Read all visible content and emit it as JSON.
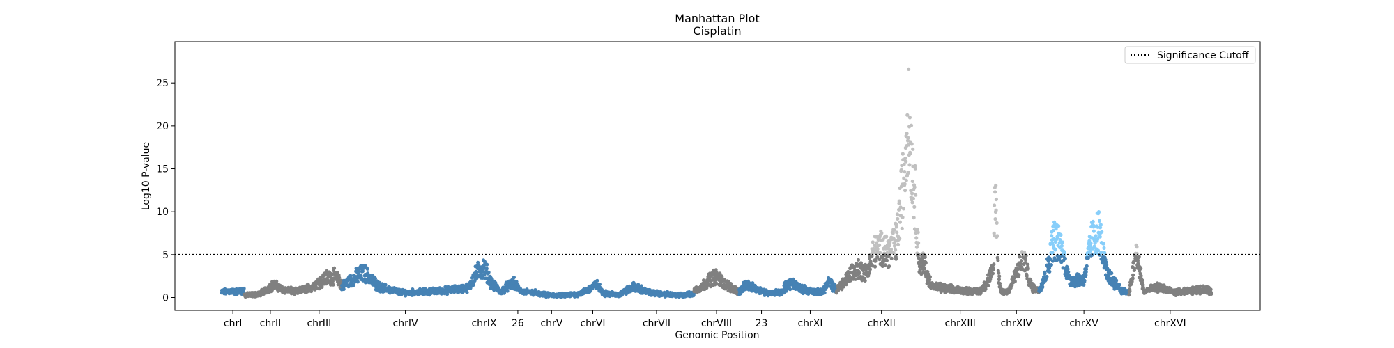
{
  "chart_data": {
    "type": "scatter",
    "title": "Manhattan Plot",
    "subtitle": "Cisplatin",
    "xlabel": "Genomic Position",
    "ylabel": "Log10 P-value",
    "ylim": [
      -1.5,
      29.8
    ],
    "yticks": [
      0,
      5,
      10,
      15,
      20,
      25
    ],
    "grid": false,
    "legend": {
      "placement": "top-right",
      "entries": [
        "Significance Cutoff"
      ]
    },
    "cutoff": 5,
    "colors": {
      "odd_chrom": "#4682b4",
      "even_chrom": "#808080",
      "odd_significant": "#87cefa",
      "even_significant": "#c0c0c0"
    },
    "chromosomes": [
      {
        "label": "chrI",
        "start": 0,
        "end": 3,
        "color": "odd",
        "profile": [
          [
            0,
            0.7
          ],
          [
            1,
            0.9
          ],
          [
            2,
            0.8
          ],
          [
            3,
            1.0
          ]
        ]
      },
      {
        "label": "chrII",
        "start": 3,
        "end": 10,
        "color": "even",
        "profile": [
          [
            3,
            0.3
          ],
          [
            5,
            0.5
          ],
          [
            7,
            1.8
          ],
          [
            8,
            1.2
          ],
          [
            10,
            0.8
          ]
        ]
      },
      {
        "label": "chrIII",
        "start": 10,
        "end": 16,
        "color": "even",
        "profile": [
          [
            10,
            0.8
          ],
          [
            12,
            1.5
          ],
          [
            14,
            2.8
          ],
          [
            15,
            3.0
          ],
          [
            16,
            2.0
          ]
        ]
      },
      {
        "label": "chrIV",
        "start": 16,
        "end": 33,
        "color": "odd",
        "profile": [
          [
            16,
            1.5
          ],
          [
            18,
            3.0
          ],
          [
            19,
            3.5
          ],
          [
            21,
            1.5
          ],
          [
            24,
            0.7
          ],
          [
            27,
            0.8
          ],
          [
            30,
            1.0
          ],
          [
            33,
            1.4
          ]
        ]
      },
      {
        "label": "chrIX",
        "start": 33,
        "end": 37,
        "color": "odd",
        "profile": [
          [
            33,
            1.5
          ],
          [
            34,
            3.5
          ],
          [
            35,
            4.3
          ],
          [
            36,
            2.0
          ],
          [
            37,
            1.0
          ]
        ]
      },
      {
        "label": "26",
        "start": 37,
        "end": 42,
        "color": "odd",
        "profile": [
          [
            37,
            0.6
          ],
          [
            38,
            1.5
          ],
          [
            39,
            2.0
          ],
          [
            40,
            0.8
          ],
          [
            42,
            0.7
          ]
        ]
      },
      {
        "label": "chrV",
        "start": 42,
        "end": 46,
        "color": "odd",
        "profile": [
          [
            42,
            0.5
          ],
          [
            44,
            0.3
          ],
          [
            46,
            0.3
          ]
        ]
      },
      {
        "label": "chrVI",
        "start": 46,
        "end": 53,
        "color": "odd",
        "profile": [
          [
            46,
            0.3
          ],
          [
            48,
            0.6
          ],
          [
            50,
            1.8
          ],
          [
            51,
            0.6
          ],
          [
            53,
            0.4
          ]
        ]
      },
      {
        "label": "chrVII",
        "start": 53,
        "end": 63,
        "color": "odd",
        "profile": [
          [
            53,
            0.4
          ],
          [
            55,
            1.5
          ],
          [
            57,
            0.7
          ],
          [
            59,
            0.5
          ],
          [
            61,
            0.3
          ],
          [
            63,
            0.5
          ]
        ]
      },
      {
        "label": "chrVIII",
        "start": 63,
        "end": 69,
        "color": "even",
        "profile": [
          [
            63,
            1.0
          ],
          [
            64,
            1.5
          ],
          [
            65,
            2.5
          ],
          [
            66,
            3.0
          ],
          [
            67,
            2.0
          ],
          [
            69,
            0.8
          ]
        ]
      },
      {
        "label": "23",
        "start": 69,
        "end": 75,
        "color": "odd",
        "profile": [
          [
            69,
            0.8
          ],
          [
            70,
            1.8
          ],
          [
            71,
            1.3
          ],
          [
            73,
            0.6
          ],
          [
            75,
            0.8
          ]
        ]
      },
      {
        "label": "chrXI",
        "start": 75,
        "end": 82,
        "color": "odd",
        "profile": [
          [
            75,
            1.5
          ],
          [
            76,
            2.0
          ],
          [
            78,
            1.0
          ],
          [
            80,
            0.7
          ],
          [
            81,
            2.2
          ],
          [
            82,
            1.0
          ]
        ]
      },
      {
        "label": "chrXII",
        "start": 82,
        "end": 94,
        "color": "even",
        "profile": [
          [
            82,
            1.0
          ],
          [
            84,
            3.5
          ],
          [
            85,
            4.0
          ],
          [
            86,
            3.5
          ],
          [
            87,
            6.5
          ],
          [
            88,
            7.0
          ],
          [
            89,
            6.5
          ],
          [
            90,
            8.0
          ],
          [
            91,
            17.0
          ],
          [
            91.5,
            26.0
          ],
          [
            92,
            20.0
          ],
          [
            92.5,
            14.0
          ],
          [
            93,
            5.0
          ],
          [
            94,
            4.5
          ]
        ]
      },
      {
        "label": "chrXIII",
        "start": 94,
        "end": 103,
        "color": "even",
        "profile": [
          [
            94,
            3.0
          ],
          [
            95,
            1.5
          ],
          [
            97,
            1.2
          ],
          [
            99,
            1.0
          ],
          [
            101,
            0.8
          ],
          [
            102,
            2.0
          ],
          [
            103,
            4.0
          ]
        ]
      },
      {
        "label": "chrXIV",
        "start": 103,
        "end": 109,
        "color": "even",
        "profile": [
          [
            103,
            12.0
          ],
          [
            103.3,
            13.5
          ],
          [
            103.6,
            3.0
          ],
          [
            104,
            0.8
          ],
          [
            105,
            1.0
          ],
          [
            106,
            3.5
          ],
          [
            107,
            5.5
          ],
          [
            108,
            1.5
          ],
          [
            109,
            1.0
          ]
        ]
      },
      {
        "label": "chrXV",
        "start": 109,
        "end": 121,
        "color": "odd",
        "profile": [
          [
            109,
            1.0
          ],
          [
            110,
            3.5
          ],
          [
            111,
            8.5
          ],
          [
            112,
            7.0
          ],
          [
            113,
            2.5
          ],
          [
            115,
            2.5
          ],
          [
            116,
            8.0
          ],
          [
            117,
            9.5
          ],
          [
            118,
            3.5
          ],
          [
            120,
            1.0
          ],
          [
            121,
            0.6
          ]
        ]
      },
      {
        "label": "chrXVI",
        "start": 121,
        "end": 132,
        "color": "even",
        "profile": [
          [
            121,
            0.5
          ],
          [
            122,
            6.3
          ],
          [
            123,
            0.8
          ],
          [
            125,
            1.5
          ],
          [
            127,
            0.7
          ],
          [
            129,
            0.9
          ],
          [
            131,
            1.2
          ],
          [
            132,
            0.8
          ]
        ]
      }
    ]
  }
}
